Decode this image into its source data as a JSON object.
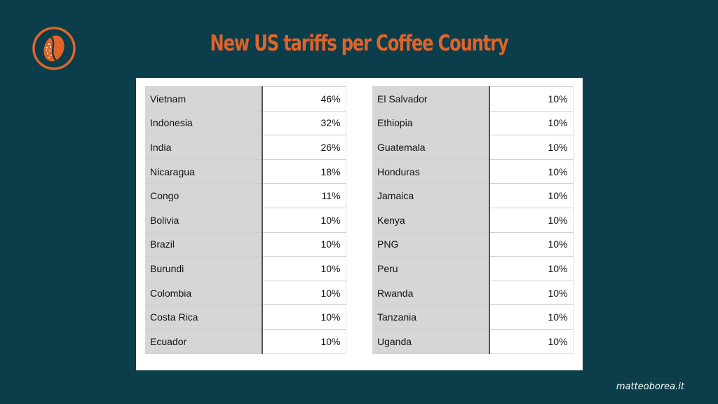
{
  "title": "New US tariffs per Coffee Country",
  "logo": {
    "icon": "coffee-bean-icon",
    "color": "#e0632a"
  },
  "tables": {
    "left": [
      {
        "country": "Vietnam",
        "rate": "46%"
      },
      {
        "country": "Indonesia",
        "rate": "32%"
      },
      {
        "country": "India",
        "rate": "26%"
      },
      {
        "country": "Nicaragua",
        "rate": "18%"
      },
      {
        "country": "Congo",
        "rate": "11%"
      },
      {
        "country": "Bolivia",
        "rate": "10%"
      },
      {
        "country": "Brazil",
        "rate": "10%"
      },
      {
        "country": "Burundi",
        "rate": "10%"
      },
      {
        "country": "Colombia",
        "rate": "10%"
      },
      {
        "country": "Costa Rica",
        "rate": "10%"
      },
      {
        "country": "Ecuador",
        "rate": "10%"
      }
    ],
    "right": [
      {
        "country": "El Salvador",
        "rate": "10%"
      },
      {
        "country": "Ethiopia",
        "rate": "10%"
      },
      {
        "country": "Guatemala",
        "rate": "10%"
      },
      {
        "country": "Honduras",
        "rate": "10%"
      },
      {
        "country": "Jamaica",
        "rate": "10%"
      },
      {
        "country": "Kenya",
        "rate": "10%"
      },
      {
        "country": "PNG",
        "rate": "10%"
      },
      {
        "country": "Peru",
        "rate": "10%"
      },
      {
        "country": "Rwanda",
        "rate": "10%"
      },
      {
        "country": "Tanzania",
        "rate": "10%"
      },
      {
        "country": "Uganda",
        "rate": "10%"
      }
    ]
  },
  "footer": "matteoborea.it",
  "colors": {
    "background": "#0c3d4a",
    "accent": "#e0632a",
    "country_cell": "#d6d6d6",
    "rate_cell": "#ffffff"
  }
}
